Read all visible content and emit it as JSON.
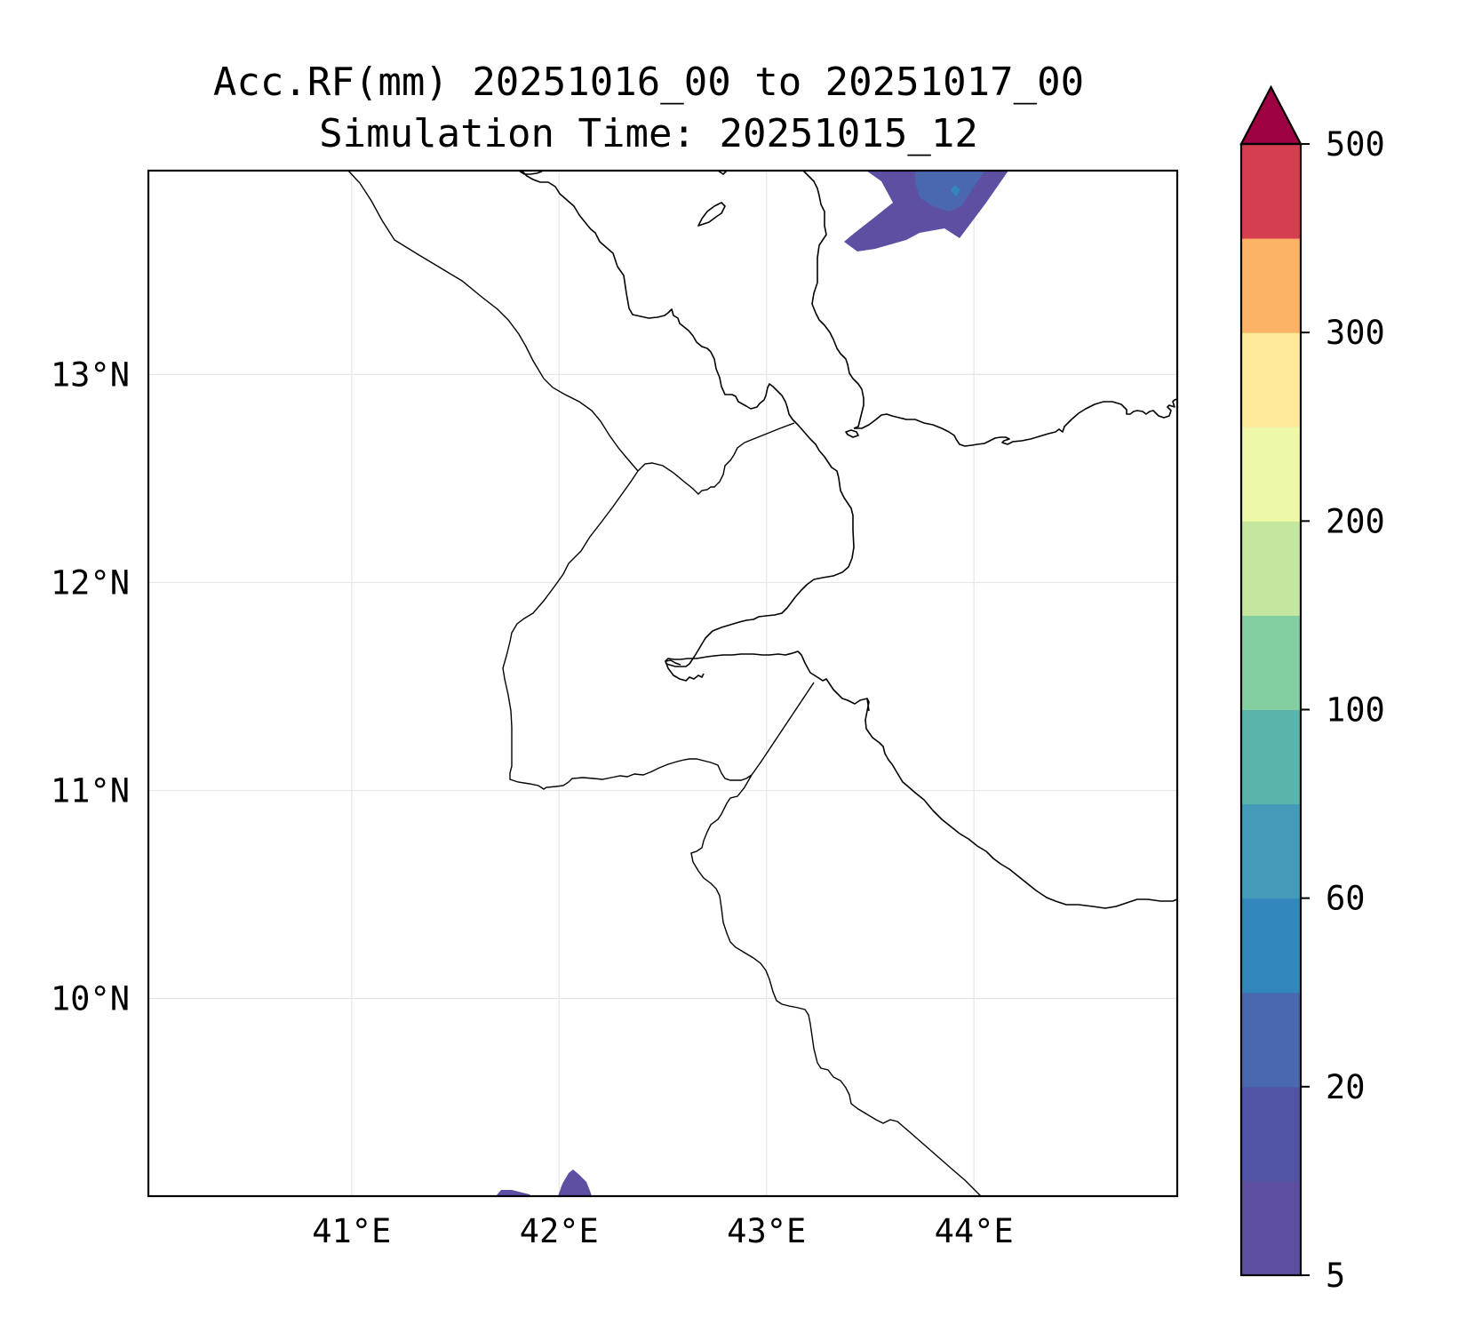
{
  "title": {
    "line1": "Acc.RF(mm) 20251016_00 to 20251017_00",
    "line2": "Simulation Time: 20251015_12"
  },
  "map": {
    "lon_range": [
      40.02,
      44.98
    ],
    "lat_range": [
      9.05,
      13.98
    ],
    "x_ticks": [
      {
        "value": 41,
        "label": "41°E"
      },
      {
        "value": 42,
        "label": "42°E"
      },
      {
        "value": 43,
        "label": "43°E"
      },
      {
        "value": 44,
        "label": "44°E"
      }
    ],
    "y_ticks": [
      {
        "value": 13,
        "label": "13°N"
      },
      {
        "value": 12,
        "label": "12°N"
      },
      {
        "value": 11,
        "label": "11°N"
      },
      {
        "value": 10,
        "label": "10°N"
      }
    ],
    "grid": true,
    "rainfall_patches": [
      {
        "region": "northeast (Red Sea / Yemen coast)",
        "level": "5-20 mm",
        "color": "#5e4fa2"
      },
      {
        "region": "northeast core",
        "level": "20-40 mm",
        "color": "#4a68b0"
      },
      {
        "region": "northeast peak",
        "level": "40-60 mm",
        "color": "#3288bd"
      },
      {
        "region": "south (Ethiopia)",
        "level": "5-20 mm",
        "color": "#5e4fa2"
      }
    ]
  },
  "colorbar": {
    "levels": [
      5,
      10,
      20,
      40,
      60,
      80,
      100,
      150,
      200,
      250,
      300,
      350,
      500
    ],
    "tick_labels": [
      "5",
      "20",
      "60",
      "100",
      "200",
      "300",
      "500"
    ],
    "colors": [
      "#5e4fa2",
      "#5155a4",
      "#4a68b0",
      "#3288bd",
      "#449bb9",
      "#5ab4ab",
      "#84cfa1",
      "#c4e69e",
      "#eff8a6",
      "#fee99a",
      "#fdb366",
      "#d53e4f"
    ],
    "extend_color": "#9e0142",
    "extend": "max"
  }
}
